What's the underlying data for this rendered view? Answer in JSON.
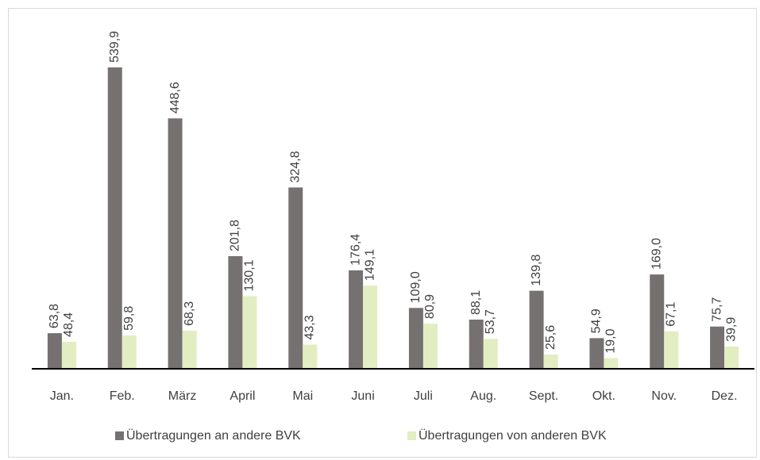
{
  "chart_data": {
    "type": "bar",
    "categories": [
      "Jan.",
      "Feb.",
      "März",
      "April",
      "Mai",
      "Juni",
      "Juli",
      "Aug.",
      "Sept.",
      "Okt.",
      "Nov.",
      "Dez."
    ],
    "series": [
      {
        "name": "Übertragungen an andere BVK",
        "color": "#767171",
        "values": [
          63.8,
          539.9,
          448.6,
          201.8,
          324.8,
          176.4,
          109.0,
          88.1,
          139.8,
          54.9,
          169.0,
          75.7
        ],
        "value_labels": [
          "63,8",
          "539,9",
          "448,6",
          "201,8",
          "324,8",
          "176,4",
          "109,0",
          "88,1",
          "139,8",
          "54,9",
          "169,0",
          "75,7"
        ]
      },
      {
        "name": "Übertragungen von anderen BVK",
        "color": "#e2edc2",
        "values": [
          48.4,
          59.8,
          68.3,
          130.1,
          43.3,
          149.1,
          80.9,
          53.7,
          25.6,
          19.0,
          67.1,
          39.9
        ],
        "value_labels": [
          "48,4",
          "59,8",
          "68,3",
          "130,1",
          "43,3",
          "149,1",
          "80,9",
          "53,7",
          "25,6",
          "19,0",
          "67,1",
          "39,9"
        ]
      }
    ],
    "legend": "bottom"
  }
}
